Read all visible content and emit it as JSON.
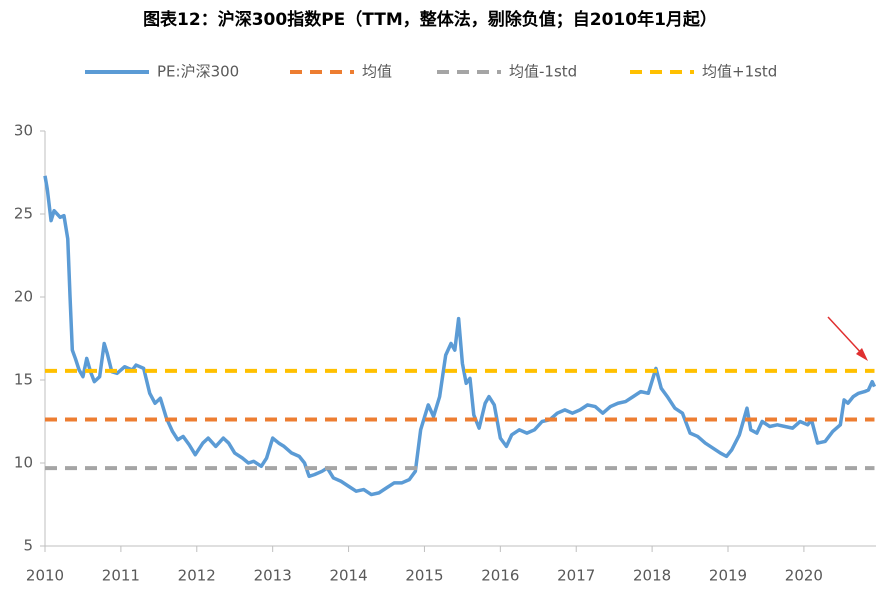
{
  "chart_data": {
    "type": "line",
    "title": "图表12：沪深300指数PE（TTM，整体法，剔除负值；自2010年1月起）",
    "xlim": [
      2010,
      2020.95
    ],
    "xticks": [
      2010,
      2011,
      2012,
      2013,
      2014,
      2015,
      2016,
      2017,
      2018,
      2019,
      2020
    ],
    "ylim": [
      5,
      30
    ],
    "yticks": [
      5,
      10,
      15,
      20,
      25,
      30
    ],
    "grid": false,
    "legend": "top",
    "series": [
      {
        "name": "PE:沪深300",
        "color": "#5b9bd5",
        "dashed": false,
        "x": [
          2010.0,
          2010.03,
          2010.08,
          2010.12,
          2010.2,
          2010.25,
          2010.3,
          2010.33,
          2010.36,
          2010.4,
          2010.45,
          2010.5,
          2010.55,
          2010.6,
          2010.65,
          2010.72,
          2010.78,
          2010.82,
          2010.88,
          2010.95,
          2011.05,
          2011.15,
          2011.2,
          2011.3,
          2011.38,
          2011.45,
          2011.52,
          2011.6,
          2011.68,
          2011.75,
          2011.82,
          2011.9,
          2011.98,
          2012.08,
          2012.15,
          2012.25,
          2012.35,
          2012.42,
          2012.5,
          2012.6,
          2012.68,
          2012.75,
          2012.85,
          2012.92,
          2013.0,
          2013.08,
          2013.15,
          2013.25,
          2013.35,
          2013.42,
          2013.48,
          2013.55,
          2013.65,
          2013.72,
          2013.8,
          2013.9,
          2014.0,
          2014.1,
          2014.2,
          2014.3,
          2014.4,
          2014.5,
          2014.6,
          2014.7,
          2014.8,
          2014.88,
          2014.95,
          2015.05,
          2015.12,
          2015.2,
          2015.28,
          2015.35,
          2015.4,
          2015.45,
          2015.5,
          2015.55,
          2015.6,
          2015.65,
          2015.72,
          2015.8,
          2015.85,
          2015.92,
          2016.0,
          2016.08,
          2016.15,
          2016.25,
          2016.35,
          2016.45,
          2016.55,
          2016.65,
          2016.75,
          2016.85,
          2016.95,
          2017.05,
          2017.15,
          2017.25,
          2017.35,
          2017.45,
          2017.55,
          2017.65,
          2017.75,
          2017.85,
          2017.95,
          2018.05,
          2018.12,
          2018.2,
          2018.3,
          2018.4,
          2018.5,
          2018.6,
          2018.7,
          2018.8,
          2018.9,
          2018.98,
          2019.05,
          2019.15,
          2019.25,
          2019.3,
          2019.38,
          2019.45,
          2019.55,
          2019.65,
          2019.75,
          2019.85,
          2019.95,
          2020.05,
          2020.1,
          2020.18,
          2020.28,
          2020.38,
          2020.48,
          2020.53,
          2020.58,
          2020.65,
          2020.72,
          2020.8,
          2020.85,
          2020.9,
          2020.93
        ],
        "values": [
          27.3,
          26.5,
          24.6,
          25.2,
          24.8,
          24.9,
          23.5,
          20,
          16.8,
          16.3,
          15.6,
          15.2,
          16.3,
          15.5,
          14.9,
          15.2,
          17.2,
          16.6,
          15.5,
          15.4,
          15.8,
          15.6,
          15.9,
          15.7,
          14.2,
          13.6,
          13.9,
          12.7,
          11.9,
          11.4,
          11.6,
          11.1,
          10.5,
          11.2,
          11.5,
          11.0,
          11.5,
          11.2,
          10.6,
          10.3,
          10.0,
          10.1,
          9.8,
          10.3,
          11.5,
          11.2,
          11.0,
          10.6,
          10.4,
          10.0,
          9.2,
          9.3,
          9.5,
          9.7,
          9.1,
          8.9,
          8.6,
          8.3,
          8.4,
          8.1,
          8.2,
          8.5,
          8.8,
          8.8,
          9.0,
          9.5,
          12.0,
          13.5,
          12.8,
          14.0,
          16.5,
          17.2,
          16.8,
          18.7,
          16.0,
          14.8,
          15.1,
          12.9,
          12.1,
          13.6,
          14.0,
          13.5,
          11.5,
          11.0,
          11.7,
          12.0,
          11.8,
          12.0,
          12.5,
          12.6,
          13.0,
          13.2,
          13.0,
          13.2,
          13.5,
          13.4,
          13.0,
          13.4,
          13.6,
          13.7,
          14.0,
          14.3,
          14.2,
          15.7,
          14.5,
          14.0,
          13.3,
          13.0,
          11.8,
          11.6,
          11.2,
          10.9,
          10.6,
          10.4,
          10.8,
          11.7,
          13.3,
          12.0,
          11.8,
          12.5,
          12.2,
          12.3,
          12.2,
          12.1,
          12.5,
          12.3,
          12.6,
          11.2,
          11.3,
          11.9,
          12.3,
          13.8,
          13.6,
          14.0,
          14.2,
          14.3,
          14.4,
          14.9,
          14.6
        ]
      },
      {
        "name": "均值",
        "color": "#ed7d31",
        "dashed": true,
        "x": [
          2010,
          2020.93
        ],
        "values": [
          12.62,
          12.62
        ]
      },
      {
        "name": "均值-1std",
        "color": "#a5a5a5",
        "dashed": true,
        "x": [
          2010,
          2020.93
        ],
        "values": [
          9.69,
          9.69
        ]
      },
      {
        "name": "均值+1std",
        "color": "#ffc000",
        "dashed": true,
        "x": [
          2010,
          2020.93
        ],
        "values": [
          15.55,
          15.55
        ]
      }
    ]
  }
}
